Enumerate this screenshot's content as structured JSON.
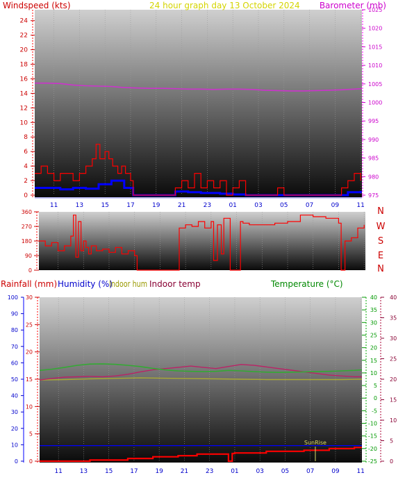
{
  "chart_data": [
    {
      "type": "line",
      "panel": "wind-pressure",
      "title": "24 hour graph day 13 October 2024",
      "left_label": "Windspeed (kts)",
      "right_label": "Barometer (mb)",
      "x_ticks": [
        "11",
        "13",
        "15",
        "17",
        "19",
        "21",
        "23",
        "01",
        "03",
        "05",
        "07",
        "09",
        "11"
      ],
      "y_left_ticks": [
        "0",
        "2",
        "4",
        "6",
        "8",
        "10",
        "12",
        "14",
        "16",
        "18",
        "20",
        "22",
        "24"
      ],
      "y_right_ticks": [
        "975",
        "980",
        "985",
        "990",
        "995",
        "1000",
        "1005",
        "1010",
        "1015",
        "1020",
        "1025"
      ],
      "ylim_left": [
        0,
        25.5
      ],
      "ylim_right": [
        975,
        1025
      ],
      "xlim_hours": [
        9.5,
        35.1
      ],
      "colors": {
        "title": "#d4d400",
        "wind_axis": "#cc0000",
        "baro_axis": "#cc00cc",
        "gust": "#ff0000",
        "avg": "#0000ff",
        "baro": "#cc33cc"
      },
      "series": [
        {
          "kind": "pressure",
          "x": [
            9.5,
            10.5,
            11.5,
            12.5,
            13.5,
            14.5,
            15.5,
            16.5,
            17.5,
            18.5,
            19.5,
            20.5,
            21.5,
            22.5,
            23.5,
            24.5,
            25.5,
            26.5,
            27.5,
            28.5,
            29.5,
            30.5,
            31.5,
            32.5,
            33.5,
            34.5,
            35.1
          ],
          "values": [
            1005.2,
            1005.2,
            1005.1,
            1004.7,
            1004.5,
            1004.4,
            1004.3,
            1004.0,
            1003.9,
            1003.8,
            1003.8,
            1003.7,
            1003.6,
            1003.6,
            1003.5,
            1003.6,
            1003.6,
            1003.5,
            1003.3,
            1003.2,
            1003.1,
            1003.1,
            1003.2,
            1003.3,
            1003.4,
            1003.6,
            1003.7
          ]
        },
        {
          "kind": "gust",
          "x": [
            9.5,
            10.0,
            10.5,
            11.0,
            11.5,
            12.0,
            12.5,
            13.0,
            13.5,
            14.0,
            14.3,
            14.6,
            15.0,
            15.3,
            15.6,
            16.0,
            16.3,
            16.6,
            17.0,
            17.2,
            18.0,
            19.0,
            20.0,
            20.5,
            21.0,
            21.5,
            22.0,
            22.5,
            23.0,
            23.5,
            24.0,
            24.5,
            25.0,
            25.5,
            26.0,
            27.0,
            28.0,
            28.5,
            29.0,
            30.0,
            31.0,
            32.0,
            33.0,
            33.5,
            34.0,
            34.5,
            35.0
          ],
          "values": [
            3,
            4,
            3,
            2,
            3,
            3,
            2,
            3,
            4,
            5,
            7,
            5,
            6,
            5,
            4,
            3,
            4,
            3,
            2,
            0,
            0,
            0,
            0,
            1,
            2,
            1,
            3,
            1,
            2,
            1,
            2,
            0,
            1,
            2,
            0,
            0,
            0,
            1,
            0,
            0,
            0,
            0,
            0,
            1,
            2,
            3,
            2
          ]
        },
        {
          "kind": "average",
          "x": [
            9.5,
            10.5,
            11.5,
            12.5,
            13.5,
            14.5,
            15.5,
            16.5,
            17.2,
            18,
            19,
            20,
            20.5,
            21.5,
            22.5,
            24,
            25,
            26,
            27,
            28,
            29,
            30,
            31,
            32,
            33,
            34,
            35
          ],
          "values": [
            1,
            1,
            0.8,
            1,
            0.9,
            1.5,
            2,
            1,
            0,
            0,
            0,
            0,
            0.5,
            0.4,
            0.3,
            0.2,
            0.1,
            0,
            0,
            0,
            0,
            0,
            0,
            0,
            0,
            0.4,
            0.6
          ]
        }
      ]
    },
    {
      "type": "line",
      "panel": "wind-direction",
      "compass_labels": [
        "N",
        "W",
        "S",
        "E",
        "N"
      ],
      "y_ticks": [
        "0",
        "90",
        "180",
        "270",
        "360"
      ],
      "ylim": [
        0,
        360
      ],
      "xlim_hours": [
        9.5,
        35.1
      ],
      "colors": {
        "axis": "#cc0000",
        "direction": "#ff0000"
      },
      "series": [
        {
          "kind": "direction",
          "x": [
            9.5,
            10.0,
            10.5,
            11.0,
            11.5,
            12.0,
            12.2,
            12.4,
            12.6,
            12.8,
            13.0,
            13.2,
            13.4,
            13.6,
            14.0,
            14.5,
            15.0,
            15.5,
            16.0,
            16.5,
            17.0,
            17.2,
            18.0,
            19.0,
            20.0,
            20.5,
            21.0,
            21.5,
            22.0,
            22.5,
            23.0,
            23.2,
            23.5,
            23.8,
            24.0,
            24.5,
            25.0,
            25.3,
            25.5,
            26.0,
            27.0,
            28.0,
            29.0,
            30.0,
            30.5,
            31.0,
            32.0,
            33.0,
            33.2,
            33.5,
            34.0,
            34.5,
            35.0
          ],
          "values": [
            180,
            150,
            170,
            120,
            150,
            210,
            340,
            80,
            300,
            120,
            180,
            140,
            100,
            150,
            120,
            130,
            110,
            140,
            100,
            120,
            90,
            0,
            0,
            0,
            0,
            260,
            280,
            270,
            300,
            260,
            300,
            60,
            280,
            100,
            320,
            0,
            0,
            300,
            290,
            280,
            280,
            290,
            300,
            340,
            340,
            330,
            320,
            290,
            0,
            180,
            200,
            260,
            280
          ]
        }
      ]
    },
    {
      "type": "line",
      "panel": "rain-hum-temp",
      "labels": {
        "rainfall": "Rainfall (mm)",
        "humidity": "Humidity (%)",
        "indoor_hum": "Indoor hum",
        "indoor_temp": "Indoor temp",
        "temperature": "Temperature (°C)",
        "sunrise": "SunRise"
      },
      "humidity_ticks": [
        "0",
        "10",
        "20",
        "30",
        "40",
        "50",
        "60",
        "70",
        "80",
        "90",
        "100"
      ],
      "rain_ticks": [
        "0",
        "5",
        "10",
        "15",
        "20",
        "25",
        "30"
      ],
      "temp_ticks": [
        "-25",
        "-20",
        "-15",
        "-10",
        "-5",
        "0",
        "5",
        "10",
        "15",
        "20",
        "25",
        "30",
        "35",
        "40"
      ],
      "indoor_temp_ticks": [
        "0",
        "5",
        "10",
        "15",
        "20",
        "25",
        "30",
        "35",
        "40"
      ],
      "ylim_humidity": [
        0,
        100
      ],
      "ylim_rain": [
        0,
        30
      ],
      "ylim_temp": [
        -25,
        40
      ],
      "ylim_indoor": [
        0,
        40
      ],
      "xlim_hours": [
        9.5,
        35.1
      ],
      "sunrise_hour": 31.4,
      "colors": {
        "rain_axis": "#cc0000",
        "humidity_axis": "#0000cc",
        "indoor_hum": "#999900",
        "indoor_temp_axis": "#880033",
        "temp_axis": "#009900",
        "rain": "#ff0000",
        "humidity": "#0000ff",
        "temp": "#33aa33",
        "indoor_temp_line": "#bb2266",
        "indoor_hum_line": "#aaaa33",
        "sunrise_line": "#dddd66"
      },
      "series": [
        {
          "kind": "humidity",
          "x": [
            9.5,
            35.1
          ],
          "values": [
            9.5,
            9.5
          ]
        },
        {
          "kind": "rain",
          "x": [
            9.5,
            13.0,
            13.5,
            16.0,
            16.5,
            18.0,
            18.5,
            20.0,
            20.5,
            21.5,
            22.0,
            24.0,
            24.5,
            24.8,
            25.0,
            27.0,
            27.5,
            30.0,
            30.5,
            32.0,
            32.5,
            34.0,
            34.5,
            35.1
          ],
          "values": [
            0,
            0,
            0.2,
            0.2,
            0.5,
            0.5,
            0.8,
            0.8,
            1.0,
            1.0,
            1.3,
            1.3,
            0,
            1.4,
            1.5,
            1.5,
            1.8,
            1.8,
            2.0,
            2.0,
            2.3,
            2.3,
            2.5,
            2.5
          ]
        },
        {
          "kind": "temperature",
          "x": [
            9.5,
            10.5,
            11.5,
            12.5,
            13.5,
            14.5,
            15.5,
            16.5,
            17.5,
            18.5,
            19.5,
            20.5,
            21.5,
            22.5,
            23.5,
            24.5,
            25.5,
            26.5,
            27.5,
            28.5,
            29.5,
            30.5,
            31.5,
            32.5,
            33.5,
            34.5,
            35.1
          ],
          "values": [
            11.0,
            11.5,
            12.2,
            13.0,
            13.5,
            13.6,
            13.4,
            13.0,
            12.5,
            11.8,
            11.2,
            10.8,
            10.6,
            10.5,
            10.6,
            11.0,
            10.8,
            10.5,
            10.3,
            10.2,
            10.3,
            10.4,
            10.5,
            10.6,
            10.8,
            11.0,
            11.2
          ]
        },
        {
          "kind": "indoor_temp",
          "x": [
            9.5,
            10.5,
            11.5,
            12.5,
            13.5,
            14.5,
            15.5,
            16.5,
            17.5,
            18.5,
            19.5,
            20.5,
            21.5,
            22.5,
            23.5,
            24.5,
            25.5,
            26.5,
            27.5,
            28.5,
            29.5,
            30.5,
            31.5,
            32.5,
            33.5,
            34.5,
            35.1
          ],
          "values": [
            19.8,
            20.2,
            20.5,
            20.6,
            20.7,
            20.6,
            20.8,
            21.2,
            21.8,
            22.3,
            22.6,
            22.9,
            23.2,
            22.9,
            22.6,
            23.1,
            23.6,
            23.4,
            23.0,
            22.6,
            22.2,
            21.8,
            21.4,
            21.0,
            20.8,
            20.6,
            20.6
          ]
        },
        {
          "kind": "indoor_hum",
          "x": [
            9.5,
            11.5,
            13.5,
            15.5,
            17.5,
            19.5,
            21.5,
            23.5,
            25.5,
            27.5,
            29.5,
            31.5,
            33.5,
            35.1
          ],
          "values": [
            49.5,
            49.8,
            50.2,
            50.5,
            50.8,
            50.6,
            50.4,
            50.2,
            50.0,
            49.8,
            49.8,
            49.8,
            49.8,
            50.0
          ]
        }
      ]
    }
  ]
}
